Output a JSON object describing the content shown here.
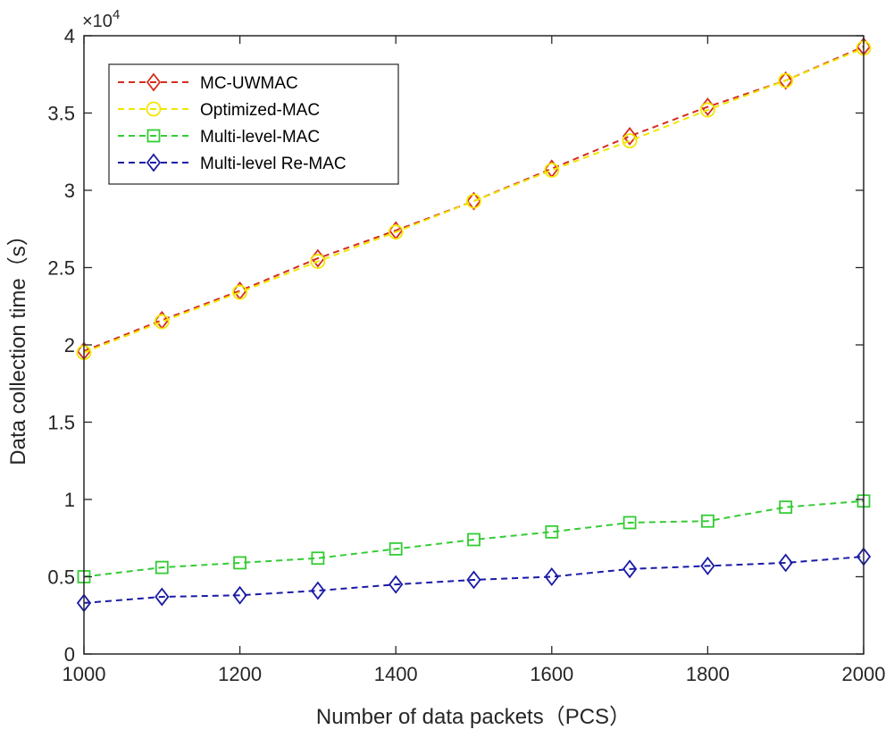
{
  "chart_data": {
    "type": "line",
    "title": "",
    "xlabel": "Number of data packets（PCS）",
    "ylabel": "Data collection time（s）",
    "x": [
      1000,
      1100,
      1200,
      1300,
      1400,
      1500,
      1600,
      1700,
      1800,
      1900,
      2000
    ],
    "xlim": [
      1000,
      2000
    ],
    "ylim": [
      0,
      40000
    ],
    "xticks": [
      1000,
      1200,
      1400,
      1600,
      1800,
      2000
    ],
    "xtick_labels": [
      "1000",
      "1200",
      "1400",
      "1600",
      "1800",
      "2000"
    ],
    "yticks": [
      0,
      5000,
      10000,
      15000,
      20000,
      25000,
      30000,
      35000,
      40000
    ],
    "ytick_labels": [
      "0",
      "0.5",
      "1",
      "1.5",
      "2",
      "2.5",
      "3",
      "3.5",
      "4"
    ],
    "y_exponent_base": "×10",
    "y_exponent_power": "4",
    "grid": false,
    "legend_position": "top-left",
    "series": [
      {
        "name": "MC-UWMAC",
        "color": "#d62c1f",
        "marker": "diamond",
        "values": [
          19600,
          21600,
          23500,
          25600,
          27400,
          29300,
          31400,
          33500,
          35400,
          37100,
          39300
        ]
      },
      {
        "name": "Optimized-MAC",
        "color": "#f2e600",
        "marker": "circle",
        "values": [
          19500,
          21500,
          23400,
          25400,
          27300,
          29300,
          31300,
          33200,
          35200,
          37100,
          39200
        ]
      },
      {
        "name": "Multi-level-MAC",
        "color": "#33cc33",
        "marker": "square",
        "values": [
          5000,
          5600,
          5900,
          6200,
          6800,
          7400,
          7900,
          8500,
          8600,
          9500,
          9900
        ]
      },
      {
        "name": "Multi-level Re-MAC",
        "color": "#1a1aa6",
        "marker": "diamond",
        "values": [
          3300,
          3700,
          3800,
          4100,
          4500,
          4800,
          5000,
          5500,
          5700,
          5900,
          6300
        ]
      }
    ]
  }
}
